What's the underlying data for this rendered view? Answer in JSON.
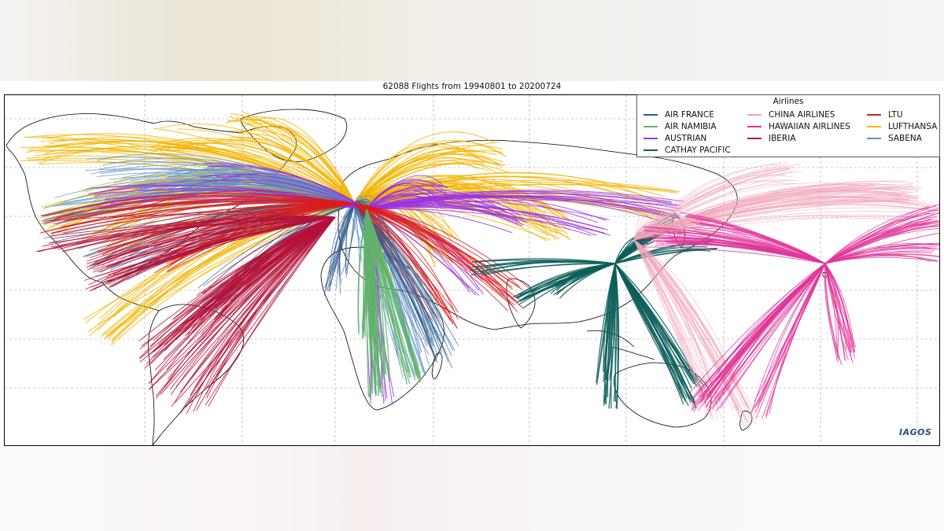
{
  "title": "62088 Flights from 19940801 to 20200724",
  "logo_text": "IAGOS",
  "legend": {
    "title": "Airlines",
    "items": [
      {
        "name": "AIR FRANCE",
        "color": "#2e5b8f"
      },
      {
        "name": "AIR NAMIBIA",
        "color": "#5fb36b"
      },
      {
        "name": "AUSTRIAN",
        "color": "#9b30e0"
      },
      {
        "name": "CATHAY PACIFIC",
        "color": "#0d5e5a"
      },
      {
        "name": "CHINA AIRLINES",
        "color": "#f0a3b8"
      },
      {
        "name": "HAWAIIAN AIRLINES",
        "color": "#e0359a"
      },
      {
        "name": "IBERIA",
        "color": "#b3123a"
      },
      {
        "name": "LTU",
        "color": "#dd1c1c"
      },
      {
        "name": "LUFTHANSA",
        "color": "#f2b400"
      },
      {
        "name": "SABENA",
        "color": "#5a93c8"
      }
    ]
  },
  "chart_data": {
    "type": "map",
    "title": "62088 Flights from 19940801 to 20200724",
    "legend_title": "Airlines",
    "legend_position": "top-right",
    "grid": true,
    "series": [
      {
        "name": "AIR FRANCE"
      },
      {
        "name": "AIR NAMIBIA"
      },
      {
        "name": "AUSTRIAN"
      },
      {
        "name": "CATHAY PACIFIC"
      },
      {
        "name": "CHINA AIRLINES"
      },
      {
        "name": "HAWAIIAN AIRLINES"
      },
      {
        "name": "IBERIA"
      },
      {
        "name": "LTU"
      },
      {
        "name": "LUFTHANSA"
      },
      {
        "name": "SABENA"
      }
    ]
  }
}
